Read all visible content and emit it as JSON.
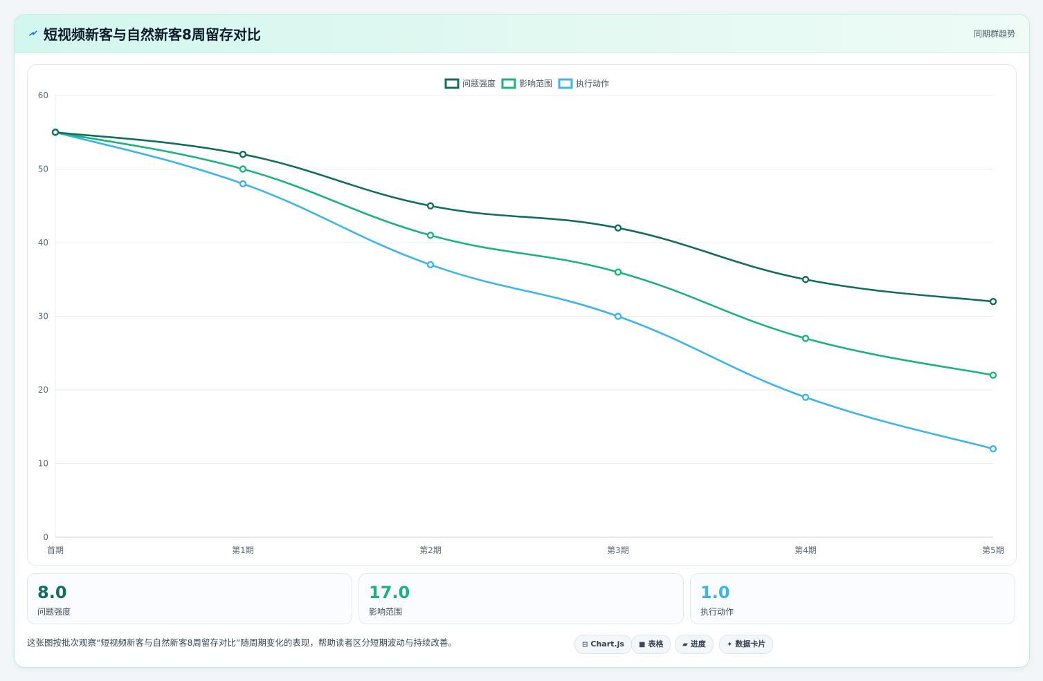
{
  "header": {
    "title": "短视频新客与自然新客8周留存对比",
    "badge": "同期群趋势",
    "icon": "lightning-icon"
  },
  "chart_data": {
    "type": "line",
    "categories": [
      "首期",
      "第1期",
      "第2期",
      "第3期",
      "第4期",
      "第5期"
    ],
    "series": [
      {
        "name": "问题强度",
        "color": "#0f6e5e",
        "values": [
          55,
          52,
          45,
          42,
          35,
          32
        ]
      },
      {
        "name": "影响范围",
        "color": "#17b57a",
        "values": [
          55,
          50,
          41,
          36,
          27,
          22
        ]
      },
      {
        "name": "执行动作",
        "color": "#3ab5ef",
        "values": [
          55,
          48,
          37,
          30,
          19,
          12
        ]
      }
    ],
    "ylim": [
      0,
      60
    ],
    "yticks": [
      0,
      10,
      20,
      30,
      40,
      50,
      60
    ],
    "grid": true,
    "legend": "top-center"
  },
  "stats": [
    {
      "value": "8.0",
      "label": "问题强度",
      "color": "#0f6e5e"
    },
    {
      "value": "17.0",
      "label": "影响范围",
      "color": "#17b57a"
    },
    {
      "value": "1.0",
      "label": "执行动作",
      "color": "#3ab5ef"
    }
  ],
  "footer": {
    "description": "这张图按批次观察“短视频新客与自然新客8周留存对比”随周期变化的表现，帮助读者区分短期波动与持续改善。",
    "chips": [
      {
        "label": "Chart.js",
        "icon": "⊟"
      },
      {
        "label": "表格",
        "icon": "■"
      },
      {
        "label": "进度",
        "icon": "▰"
      },
      {
        "label": "数据卡片",
        "icon": "✦"
      }
    ]
  }
}
